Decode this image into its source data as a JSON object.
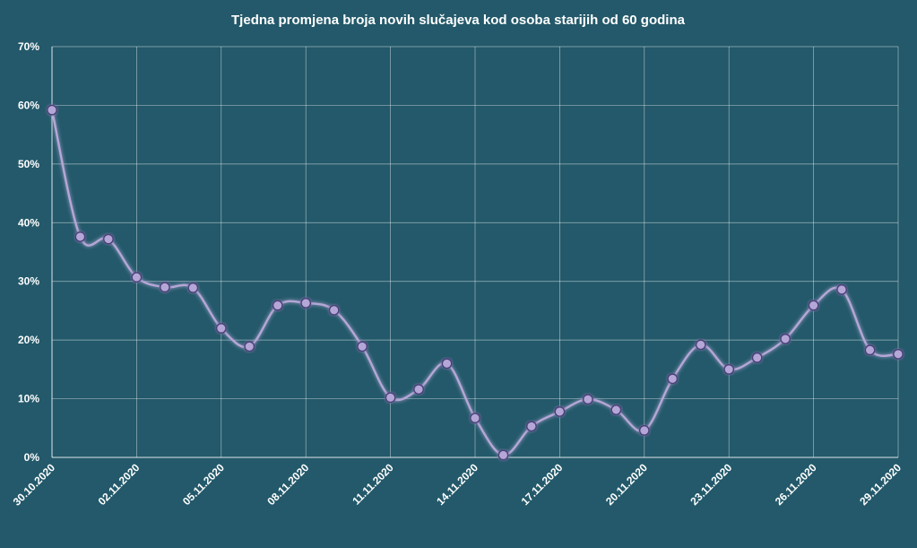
{
  "chart_data": {
    "type": "line",
    "title": "Tjedna promjena broja novih slučajeva kod osoba starijih od 60 godina",
    "xlabel": "",
    "ylabel": "",
    "ylim": [
      0,
      70
    ],
    "y_ticks": [
      "0%",
      "10%",
      "20%",
      "30%",
      "40%",
      "50%",
      "60%",
      "70%"
    ],
    "x": [
      "30.10.2020",
      "31.10.2020",
      "01.11.2020",
      "02.11.2020",
      "03.11.2020",
      "04.11.2020",
      "05.11.2020",
      "06.11.2020",
      "07.11.2020",
      "08.11.2020",
      "09.11.2020",
      "10.11.2020",
      "11.11.2020",
      "12.11.2020",
      "13.11.2020",
      "14.11.2020",
      "15.11.2020",
      "16.11.2020",
      "17.11.2020",
      "18.11.2020",
      "19.11.2020",
      "20.11.2020",
      "21.11.2020",
      "22.11.2020",
      "23.11.2020",
      "24.11.2020",
      "25.11.2020",
      "26.11.2020",
      "27.11.2020",
      "28.11.2020",
      "29.11.2020"
    ],
    "x_tick_labels": [
      "30.10.2020",
      "02.11.2020",
      "05.11.2020",
      "08.11.2020",
      "11.11.2020",
      "14.11.2020",
      "17.11.2020",
      "20.11.2020",
      "23.11.2020",
      "26.11.2020",
      "29.11.2020"
    ],
    "series": [
      {
        "values": [
          59.2,
          37.6,
          37.2,
          30.7,
          29.0,
          28.9,
          22.0,
          18.9,
          25.9,
          26.3,
          25.1,
          18.9,
          10.2,
          11.6,
          16.0,
          6.7,
          0.4,
          5.3,
          7.8,
          9.9,
          8.1,
          4.6,
          13.4,
          19.2,
          15.0,
          17.0,
          20.2,
          25.9,
          28.6,
          18.3,
          17.6
        ],
        "color": "#b4a7d6"
      }
    ],
    "grid": true,
    "legend": "none",
    "colors": {
      "background": "#23596a",
      "line": "#b4a7d6",
      "marker_fill": "#b4a7d6",
      "marker_stroke": "#4a3f7a",
      "grid": "#ffffff",
      "text": "#ffffff"
    }
  }
}
